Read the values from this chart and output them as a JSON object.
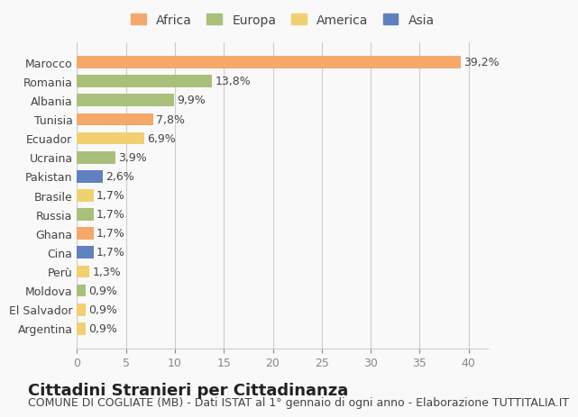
{
  "countries": [
    "Marocco",
    "Romania",
    "Albania",
    "Tunisia",
    "Ecuador",
    "Ucraina",
    "Pakistan",
    "Brasile",
    "Russia",
    "Ghana",
    "Cina",
    "Perù",
    "Moldova",
    "El Salvador",
    "Argentina"
  ],
  "values": [
    39.2,
    13.8,
    9.9,
    7.8,
    6.9,
    3.9,
    2.6,
    1.7,
    1.7,
    1.7,
    1.7,
    1.3,
    0.9,
    0.9,
    0.9
  ],
  "labels": [
    "39,2%",
    "13,8%",
    "9,9%",
    "7,8%",
    "6,9%",
    "3,9%",
    "2,6%",
    "1,7%",
    "1,7%",
    "1,7%",
    "1,7%",
    "1,3%",
    "0,9%",
    "0,9%",
    "0,9%"
  ],
  "continents": [
    "Africa",
    "Europa",
    "Europa",
    "Africa",
    "America",
    "Europa",
    "Asia",
    "America",
    "Europa",
    "Africa",
    "Asia",
    "America",
    "Europa",
    "America",
    "America"
  ],
  "continent_colors": {
    "Africa": "#F4A96A",
    "Europa": "#A8C07A",
    "America": "#F0D070",
    "Asia": "#6080C0"
  },
  "legend_order": [
    "Africa",
    "Europa",
    "America",
    "Asia"
  ],
  "title": "Cittadini Stranieri per Cittadinanza",
  "subtitle": "COMUNE DI COGLIATE (MB) - Dati ISTAT al 1° gennaio di ogni anno - Elaborazione TUTTITALIA.IT",
  "xlim": [
    0,
    42
  ],
  "xticks": [
    0,
    5,
    10,
    15,
    20,
    25,
    30,
    35,
    40
  ],
  "background_color": "#f9f9f9",
  "grid_color": "#cccccc",
  "bar_height": 0.65,
  "title_fontsize": 13,
  "subtitle_fontsize": 9,
  "label_fontsize": 9,
  "tick_fontsize": 9,
  "legend_fontsize": 10
}
